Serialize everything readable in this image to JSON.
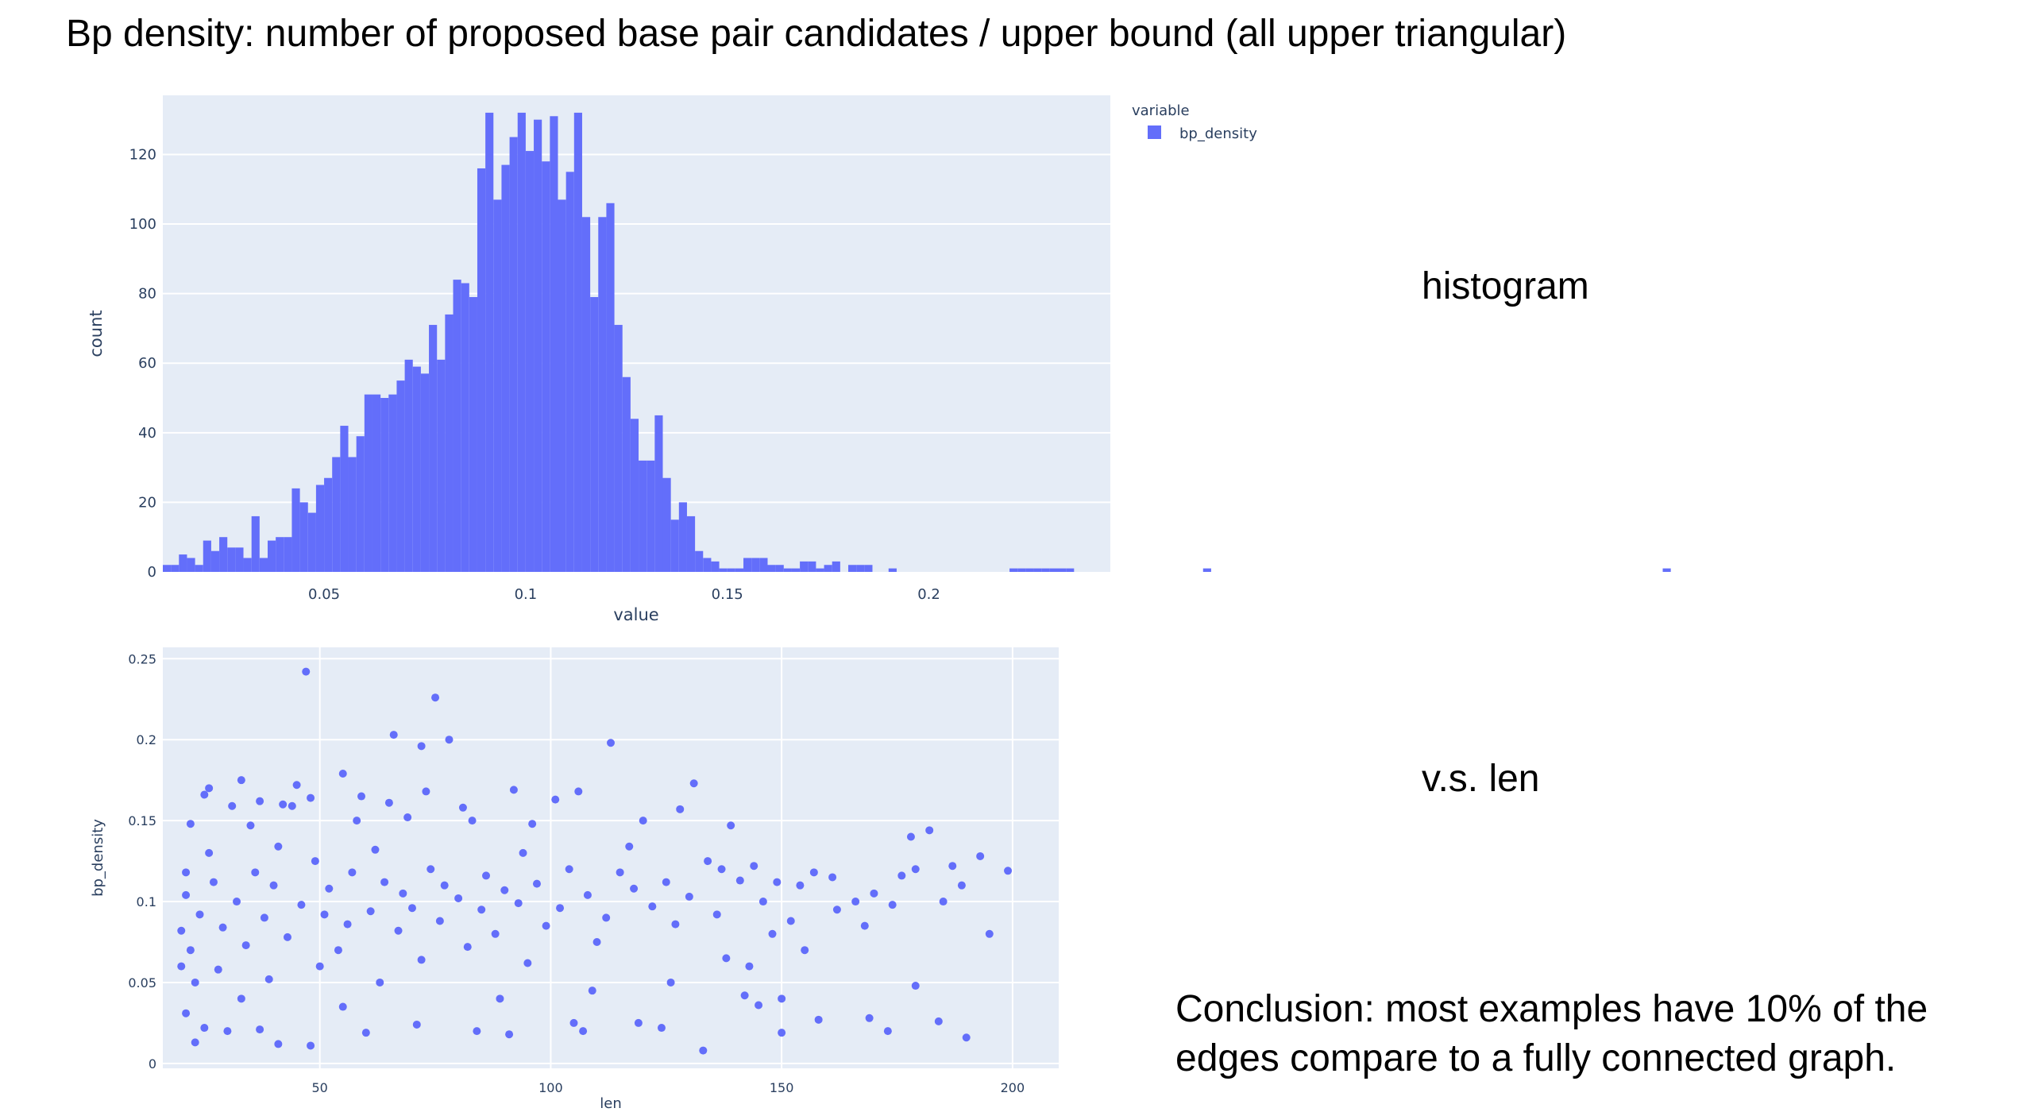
{
  "slide": {
    "title": "Bp density: number of proposed base pair candidates / upper bound (all upper triangular)",
    "label_histogram": "histogram",
    "label_scatter": "v.s. len",
    "conclusion_line1": "Conclusion: most examples have 10% of the",
    "conclusion_line2": "edges compare to a fully connected graph."
  },
  "colors": {
    "plot_bg": "#e5ecf6",
    "grid": "#ffffff",
    "marker": "#636efa",
    "axis_text": "#2a3f5f"
  },
  "chart_data": [
    {
      "type": "bar",
      "subtype": "histogram",
      "xlabel": "value",
      "ylabel": "count",
      "xlim": [
        0.01,
        0.245
      ],
      "ylim": [
        0,
        137
      ],
      "bin_start": 0.01,
      "bin_width": 0.002,
      "xticks": [
        0.05,
        0.1,
        0.15,
        0.2
      ],
      "xtick_labels": [
        "0.05",
        "0.1",
        "0.15",
        "0.2"
      ],
      "yticks": [
        0,
        20,
        40,
        60,
        80,
        100,
        120
      ],
      "ytick_labels": [
        "0",
        "20",
        "40",
        "60",
        "80",
        "100",
        "120"
      ],
      "grid": true,
      "legend": {
        "title": "variable",
        "placement": "top-right",
        "entries": [
          "bp_density"
        ]
      },
      "series": [
        {
          "name": "bp_density",
          "values": [
            2,
            2,
            5,
            4,
            2,
            9,
            6,
            10,
            7,
            7,
            4,
            16,
            4,
            9,
            10,
            10,
            24,
            20,
            17,
            25,
            27,
            33,
            42,
            33,
            39,
            51,
            51,
            50,
            51,
            55,
            61,
            59,
            57,
            71,
            61,
            74,
            84,
            83,
            79,
            116,
            132,
            107,
            117,
            125,
            132,
            121,
            130,
            118,
            131,
            107,
            115,
            132,
            102,
            79,
            102,
            106,
            71,
            56,
            44,
            32,
            32,
            45,
            27,
            15,
            20,
            16,
            6,
            4,
            3,
            1,
            1,
            1,
            4,
            4,
            4,
            2,
            2,
            1,
            1,
            3,
            3,
            1,
            2,
            3,
            0,
            2,
            2,
            2,
            0,
            0,
            1,
            0,
            0,
            0,
            0,
            0,
            0,
            0,
            0,
            0,
            0,
            0,
            0,
            0,
            0,
            1,
            1,
            1,
            1,
            1,
            1,
            1,
            1,
            0,
            0,
            0,
            0,
            0,
            0,
            0,
            0,
            0,
            0,
            0,
            0,
            0,
            0,
            0,
            0,
            1,
            0,
            0,
            0,
            0,
            0,
            0,
            0,
            0,
            0,
            0,
            0,
            0,
            0,
            0,
            0,
            0,
            0,
            0,
            0,
            0,
            0,
            0,
            0,
            0,
            0,
            0,
            0,
            0,
            0,
            0,
            0,
            0,
            0,
            0,
            0,
            0,
            0,
            0,
            0,
            0,
            0,
            0,
            0,
            0,
            0,
            0,
            0,
            0,
            0,
            0,
            0,
            0,
            0,
            0,
            0,
            0,
            1
          ]
        }
      ]
    },
    {
      "type": "scatter",
      "xlabel": "len",
      "ylabel": "bp_density",
      "xlim": [
        16,
        210
      ],
      "ylim": [
        -0.003,
        0.257
      ],
      "xticks": [
        50,
        100,
        150,
        200
      ],
      "xtick_labels": [
        "50",
        "100",
        "150",
        "200"
      ],
      "yticks": [
        0,
        0.05,
        0.1,
        0.15,
        0.2,
        0.25
      ],
      "ytick_labels": [
        "0",
        "0.05",
        "0.1",
        "0.15",
        "0.2",
        "0.25"
      ],
      "grid": true,
      "series": [
        {
          "points": [
            [
              47,
              0.242
            ],
            [
              75,
              0.226
            ],
            [
              66,
              0.203
            ],
            [
              78,
              0.2
            ],
            [
              72,
              0.196
            ],
            [
              113,
              0.198
            ],
            [
              131,
              0.173
            ],
            [
              33,
              0.175
            ],
            [
              55,
              0.179
            ],
            [
              45,
              0.172
            ],
            [
              26,
              0.17
            ],
            [
              59,
              0.165
            ],
            [
              73,
              0.168
            ],
            [
              92,
              0.169
            ],
            [
              106,
              0.168
            ],
            [
              48,
              0.164
            ],
            [
              25,
              0.166
            ],
            [
              37,
              0.162
            ],
            [
              101,
              0.163
            ],
            [
              31,
              0.159
            ],
            [
              42,
              0.16
            ],
            [
              44,
              0.159
            ],
            [
              65,
              0.161
            ],
            [
              81,
              0.158
            ],
            [
              128,
              0.157
            ],
            [
              22,
              0.148
            ],
            [
              35,
              0.147
            ],
            [
              58,
              0.15
            ],
            [
              69,
              0.152
            ],
            [
              83,
              0.15
            ],
            [
              96,
              0.148
            ],
            [
              120,
              0.15
            ],
            [
              139,
              0.147
            ],
            [
              182,
              0.144
            ],
            [
              178,
              0.14
            ],
            [
              193,
              0.128
            ],
            [
              199,
              0.119
            ],
            [
              195,
              0.08
            ],
            [
              190,
              0.016
            ],
            [
              184,
              0.026
            ],
            [
              179,
              0.048
            ],
            [
              169,
              0.028
            ],
            [
              173,
              0.02
            ],
            [
              158,
              0.027
            ],
            [
              150,
              0.019
            ],
            [
              150,
              0.04
            ],
            [
              145,
              0.036
            ],
            [
              142,
              0.042
            ],
            [
              133,
              0.008
            ],
            [
              124,
              0.022
            ],
            [
              119,
              0.025
            ],
            [
              107,
              0.02
            ],
            [
              105,
              0.025
            ],
            [
              91,
              0.018
            ],
            [
              84,
              0.02
            ],
            [
              71,
              0.024
            ],
            [
              60,
              0.019
            ],
            [
              48,
              0.011
            ],
            [
              41,
              0.012
            ],
            [
              37,
              0.021
            ],
            [
              30,
              0.02
            ],
            [
              25,
              0.022
            ],
            [
              23,
              0.013
            ],
            [
              21,
              0.031
            ],
            [
              179,
              0.12
            ],
            [
              176,
              0.116
            ],
            [
              170,
              0.105
            ],
            [
              166,
              0.1
            ],
            [
              162,
              0.095
            ],
            [
              157,
              0.118
            ],
            [
              154,
              0.11
            ],
            [
              152,
              0.088
            ],
            [
              148,
              0.08
            ],
            [
              146,
              0.1
            ],
            [
              144,
              0.122
            ],
            [
              141,
              0.113
            ],
            [
              138,
              0.065
            ],
            [
              136,
              0.092
            ],
            [
              134,
              0.125
            ],
            [
              130,
              0.103
            ],
            [
              127,
              0.086
            ],
            [
              125,
              0.112
            ],
            [
              122,
              0.097
            ],
            [
              118,
              0.108
            ],
            [
              115,
              0.118
            ],
            [
              112,
              0.09
            ],
            [
              110,
              0.075
            ],
            [
              108,
              0.104
            ],
            [
              104,
              0.12
            ],
            [
              102,
              0.096
            ],
            [
              99,
              0.085
            ],
            [
              97,
              0.111
            ],
            [
              95,
              0.062
            ],
            [
              93,
              0.099
            ],
            [
              90,
              0.107
            ],
            [
              88,
              0.08
            ],
            [
              86,
              0.116
            ],
            [
              85,
              0.095
            ],
            [
              82,
              0.072
            ],
            [
              80,
              0.102
            ],
            [
              77,
              0.11
            ],
            [
              76,
              0.088
            ],
            [
              74,
              0.12
            ],
            [
              72,
              0.064
            ],
            [
              70,
              0.096
            ],
            [
              68,
              0.105
            ],
            [
              67,
              0.082
            ],
            [
              64,
              0.112
            ],
            [
              63,
              0.05
            ],
            [
              61,
              0.094
            ],
            [
              57,
              0.118
            ],
            [
              56,
              0.086
            ],
            [
              54,
              0.07
            ],
            [
              52,
              0.108
            ],
            [
              51,
              0.092
            ],
            [
              50,
              0.06
            ],
            [
              49,
              0.125
            ],
            [
              46,
              0.098
            ],
            [
              43,
              0.078
            ],
            [
              40,
              0.11
            ],
            [
              39,
              0.052
            ],
            [
              38,
              0.09
            ],
            [
              36,
              0.118
            ],
            [
              34,
              0.073
            ],
            [
              32,
              0.1
            ],
            [
              29,
              0.084
            ],
            [
              28,
              0.058
            ],
            [
              27,
              0.112
            ],
            [
              24,
              0.092
            ],
            [
              22,
              0.07
            ],
            [
              21,
              0.104
            ],
            [
              20,
              0.082
            ],
            [
              20,
              0.06
            ],
            [
              21,
              0.118
            ],
            [
              23,
              0.05
            ],
            [
              26,
              0.13
            ],
            [
              33,
              0.04
            ],
            [
              41,
              0.134
            ],
            [
              55,
              0.035
            ],
            [
              62,
              0.132
            ],
            [
              89,
              0.04
            ],
            [
              94,
              0.13
            ],
            [
              109,
              0.045
            ],
            [
              117,
              0.134
            ],
            [
              126,
              0.05
            ],
            [
              137,
              0.12
            ],
            [
              143,
              0.06
            ],
            [
              149,
              0.112
            ],
            [
              155,
              0.07
            ],
            [
              161,
              0.115
            ],
            [
              168,
              0.085
            ],
            [
              174,
              0.098
            ],
            [
              187,
              0.122
            ],
            [
              185,
              0.1
            ],
            [
              189,
              0.11
            ]
          ]
        }
      ]
    }
  ]
}
